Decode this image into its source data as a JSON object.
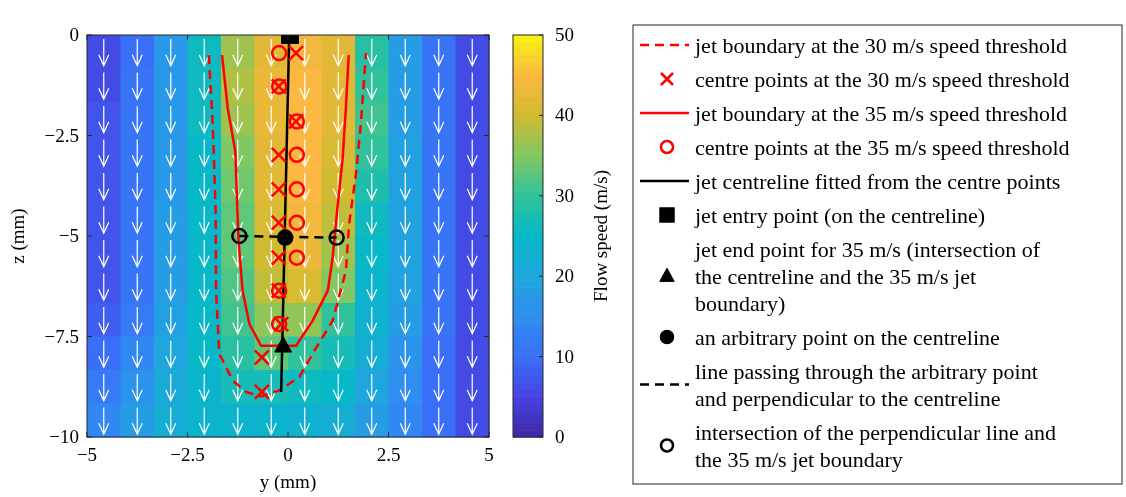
{
  "chart_data": [
    {
      "type": "heatmap",
      "clabel": "Flow speed (m/s)",
      "clim": [
        0,
        50
      ],
      "cticks": [
        0,
        10,
        20,
        30,
        40,
        50
      ],
      "categories": [
        null,
        null,
        null,
        null,
        null,
        null,
        null,
        null,
        null,
        null,
        null,
        null
      ],
      "y_categories": [
        null,
        null,
        null,
        null,
        null,
        null,
        null,
        null,
        null,
        null,
        null,
        null
      ],
      "cells": [
        [
          6,
          10,
          17,
          26,
          37,
          42,
          44,
          42,
          29,
          18,
          11,
          6
        ],
        [
          6,
          11,
          17,
          26,
          38,
          43,
          45,
          42,
          30,
          18,
          11,
          6
        ],
        [
          7,
          11,
          17,
          26,
          37,
          43,
          45,
          42,
          31,
          18,
          11,
          6
        ],
        [
          7,
          11,
          17,
          25,
          35,
          42,
          45,
          41,
          30,
          19,
          11,
          6
        ],
        [
          7,
          11,
          17,
          25,
          34,
          42,
          45,
          40,
          28,
          19,
          11,
          6
        ],
        [
          7,
          11,
          18,
          25,
          33,
          41,
          44,
          39,
          26,
          19,
          11,
          6
        ],
        [
          7,
          11,
          18,
          25,
          33,
          40,
          43,
          37,
          25,
          19,
          11,
          6
        ],
        [
          7,
          11,
          18,
          25,
          32,
          39,
          41,
          35,
          24,
          19,
          11,
          6
        ],
        [
          8,
          12,
          19,
          25,
          31,
          36,
          36,
          30,
          23,
          18,
          11,
          6
        ],
        [
          10,
          14,
          20,
          25,
          29,
          33,
          30,
          27,
          22,
          16,
          10,
          6
        ],
        [
          12,
          16,
          21,
          24,
          27,
          27,
          26,
          25,
          20,
          15,
          10,
          6
        ],
        [
          14,
          18,
          22,
          24,
          24,
          24,
          23,
          22,
          18,
          14,
          10,
          6
        ]
      ]
    },
    {
      "type": "line",
      "xlabel": "y (mm)",
      "ylabel": "z (mm)",
      "xlim": [
        -5,
        5
      ],
      "ylim": [
        -10,
        0
      ],
      "xticks": [
        {
          "value": -5,
          "label": "−5"
        },
        {
          "value": -2.5,
          "label": "−2.5"
        },
        0,
        2.5,
        5
      ],
      "yticks": [
        0,
        {
          "value": -2.5,
          "label": "−2.5"
        },
        {
          "value": -5,
          "label": "−5"
        },
        {
          "value": -7.5,
          "label": "−7.5"
        },
        {
          "value": -10,
          "label": "−10"
        }
      ],
      "legend": "right",
      "series": [
        {
          "type": "line",
          "name": "jet boundary at the 30 m/s speed threshold",
          "color": "#ff0000",
          "line_style": "dashed",
          "marker": "none",
          "x": [
            -1.97,
            -1.87,
            -1.8,
            -1.79,
            -1.71,
            -1.37,
            -1.04,
            -0.67,
            -0.22,
            0.28,
            0.61,
            1.11,
            1.44,
            1.52,
            1.69,
            1.81,
            1.9,
            1.94
          ],
          "values": [
            -0.5,
            -2.23,
            -4.38,
            -6.36,
            -7.93,
            -8.6,
            -8.88,
            -8.99,
            -8.84,
            -8.51,
            -7.93,
            -7.11,
            -5.87,
            -4.71,
            -3.47,
            -2.23,
            -0.99,
            -0.45
          ]
        },
        {
          "type": "scatter",
          "name": "centre points at the 30 m/s speed threshold",
          "color": "#ff0000",
          "marker": "cross",
          "x": [
            0.2,
            -0.23,
            0.2,
            -0.23,
            -0.23,
            -0.23,
            -0.23,
            -0.23,
            -0.17,
            -0.65,
            -0.65
          ],
          "values": [
            -0.45,
            -1.28,
            -2.15,
            -2.98,
            -3.84,
            -4.67,
            -5.54,
            -6.36,
            -7.19,
            -8.02,
            -8.88
          ]
        },
        {
          "type": "line",
          "name": "jet boundary at the 35 m/s speed threshold",
          "color": "#ff0000",
          "line_style": "solid",
          "marker": "none",
          "x": [
            -1.64,
            -1.5,
            -1.31,
            -1.27,
            -1.23,
            -1.13,
            -0.96,
            -0.67,
            0.2,
            0.61,
            0.99,
            1.11,
            1.23,
            1.36,
            1.44,
            1.51
          ],
          "values": [
            -0.5,
            -1.82,
            -2.89,
            -4.05,
            -5.12,
            -6.36,
            -7.19,
            -7.73,
            -7.73,
            -7.11,
            -6.36,
            -5.54,
            -4.3,
            -3.06,
            -1.82,
            -0.5
          ]
        },
        {
          "type": "scatter",
          "name": "centre points at the 35 m/s speed threshold",
          "color": "#ff0000",
          "marker": "circle",
          "x": [
            -0.22,
            -0.22,
            0.22,
            0.22,
            0.22,
            0.22,
            0.22,
            -0.22,
            -0.22
          ],
          "values": [
            -0.45,
            -1.28,
            -2.15,
            -2.98,
            -3.84,
            -4.67,
            -5.54,
            -6.36,
            -7.19
          ]
        },
        {
          "type": "line",
          "name": "jet centreline fitted from the centre points",
          "color": "#000000",
          "line_style": "solid",
          "marker": "none",
          "x": [
            0.03,
            -0.17
          ],
          "values": [
            0,
            -8.88
          ]
        },
        {
          "type": "scatter",
          "name": "jet entry point (on the centreline)",
          "color": "#000000",
          "marker": "square",
          "x": [
            0.05
          ],
          "values": [
            0
          ]
        },
        {
          "type": "scatter",
          "name": "jet end point for 35 m/s (intersection of the centreline and the 35 m/s jet boundary)",
          "color": "#000000",
          "marker": "triangle",
          "x": [
            -0.12
          ],
          "values": [
            -7.73
          ]
        },
        {
          "type": "scatter",
          "name": "an arbitrary point on the centreline",
          "color": "#000000",
          "marker": "circle",
          "x": [
            -0.07
          ],
          "values": [
            -5.04
          ]
        },
        {
          "type": "line",
          "name": "line passing through the arbitrary point and perpendicular to the centreline",
          "color": "#000000",
          "line_style": "dashed",
          "marker": "none",
          "x": [
            -1.21,
            1.21
          ],
          "values": [
            -5.0,
            -5.04
          ]
        },
        {
          "type": "scatter",
          "name": "intersection of the perpendicular line and the 35 m/s jet boundary",
          "color": "#000000",
          "marker": "circle",
          "x": [
            -1.21,
            1.21
          ],
          "values": [
            -5.0,
            -5.04
          ]
        }
      ]
    }
  ]
}
